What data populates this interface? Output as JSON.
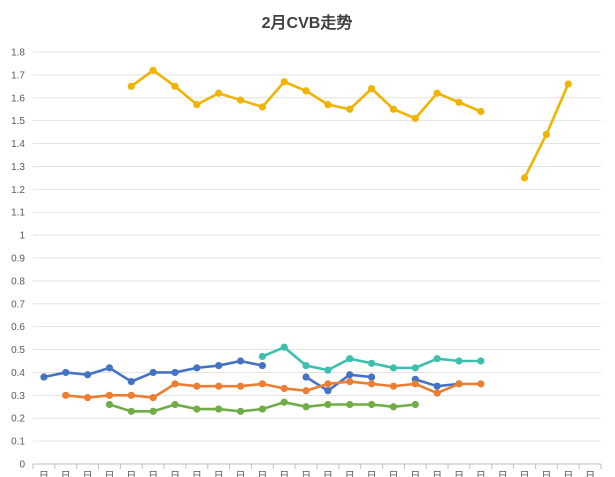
{
  "chart_data": {
    "type": "line",
    "title": "2月CVB走势",
    "xlabel": "",
    "ylabel": "",
    "ylim": [
      0,
      1.8
    ],
    "y_ticks": [
      "0",
      "0.1",
      "0.2",
      "0.3",
      "0.4",
      "0.5",
      "0.6",
      "0.7",
      "0.8",
      "0.9",
      "1",
      "1.1",
      "1.2",
      "1.3",
      "1.4",
      "1.5",
      "1.6",
      "1.7",
      "1.8"
    ],
    "grid": true,
    "legend": "none",
    "categories": [
      "日",
      "日",
      "日",
      "日",
      "日",
      "日",
      "日",
      "日",
      "日",
      "日",
      "日",
      "日",
      "日",
      "日",
      "日",
      "日",
      "日",
      "日",
      "日",
      "日",
      "日",
      "日",
      "日",
      "日",
      "日",
      "日"
    ],
    "series": [
      {
        "color": "#f0b400",
        "values": [
          null,
          null,
          null,
          null,
          1.65,
          1.72,
          1.65,
          1.57,
          1.62,
          1.59,
          1.56,
          1.67,
          1.63,
          1.57,
          1.55,
          1.64,
          1.55,
          1.51,
          1.62,
          1.58,
          1.54,
          null,
          1.25,
          1.44,
          1.66,
          null
        ]
      },
      {
        "color": "#4472c4",
        "values": [
          0.38,
          0.4,
          0.39,
          0.42,
          0.36,
          0.4,
          0.4,
          0.42,
          0.43,
          0.45,
          0.43,
          null,
          0.38,
          0.32,
          0.39,
          0.38,
          null,
          0.37,
          0.34,
          0.35,
          null,
          null,
          null,
          null,
          null,
          null
        ]
      },
      {
        "color": "#ed7d31",
        "values": [
          null,
          0.3,
          0.29,
          0.3,
          0.3,
          0.29,
          0.35,
          0.34,
          0.34,
          0.34,
          0.35,
          0.33,
          0.32,
          0.35,
          0.36,
          0.35,
          0.34,
          0.35,
          0.31,
          0.35,
          0.35,
          null,
          null,
          null,
          null,
          null
        ]
      },
      {
        "color": "#70ad47",
        "values": [
          null,
          null,
          null,
          0.26,
          0.23,
          0.23,
          0.26,
          0.24,
          0.24,
          0.23,
          0.24,
          0.27,
          0.25,
          0.26,
          0.26,
          0.26,
          0.25,
          0.26,
          null,
          null,
          null,
          null,
          null,
          null,
          null,
          null
        ]
      },
      {
        "color": "#3cbfae",
        "values": [
          null,
          null,
          null,
          null,
          null,
          null,
          null,
          null,
          null,
          null,
          0.47,
          0.51,
          0.43,
          0.41,
          0.46,
          0.44,
          0.42,
          0.42,
          0.46,
          0.45,
          0.45,
          null,
          null,
          null,
          null,
          null
        ]
      }
    ]
  }
}
